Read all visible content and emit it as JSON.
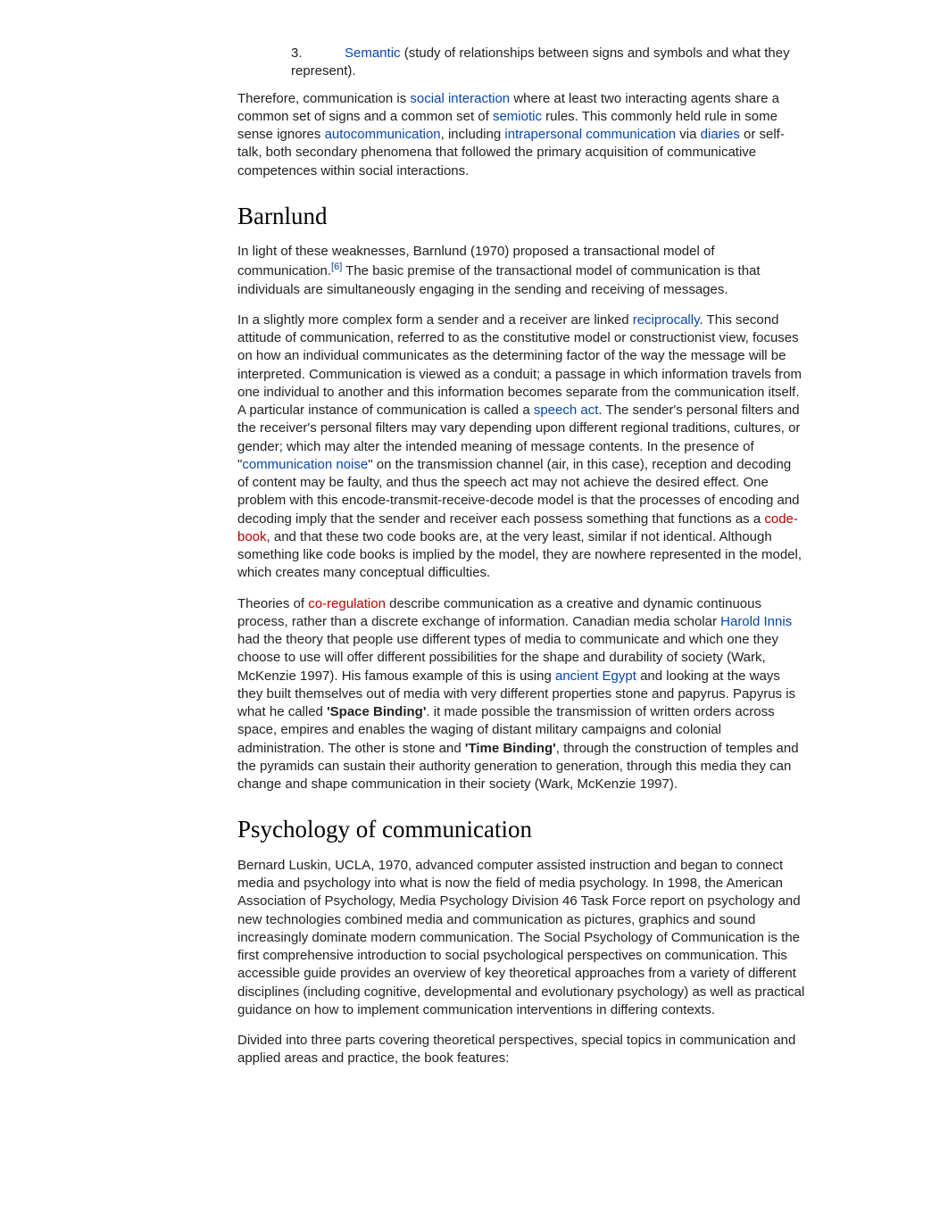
{
  "list": {
    "marker": "3.",
    "link": "Semantic",
    "rest": " (study of relationships between signs and symbols and what they represent)."
  },
  "therefore": {
    "t0": "Therefore, communication is ",
    "l1": "social interaction",
    "t1": " where at least two interacting agents share a common set of signs and a common set of ",
    "l2": "semiotic",
    "t2": " rules. This commonly held rule in some sense ignores ",
    "l3": "autocommunication",
    "t3": ", including ",
    "l4": "intrapersonal communication",
    "t4": " via ",
    "l5": "diaries",
    "t5": " or self-talk, both secondary phenomena that followed the primary acquisition of communicative competences within social interactions."
  },
  "barnlund": {
    "heading": "Barnlund",
    "p1a": "In light of these weaknesses, Barnlund (1970) proposed a transactional model of communication.",
    "cite": "[6]",
    "p1b": " The basic premise of the transactional model of communication is that individuals are simultaneously engaging in the sending and receiving of messages.",
    "p2": {
      "t0": "In a slightly more complex form a sender and a receiver are linked ",
      "l1": "reciprocally",
      "t1": ". This second attitude of communication, referred to as the constitutive model or constructionist view, focuses on how an individual communicates as the determining factor of the way the message will be interpreted. Communication is viewed as a conduit; a passage in which information travels from one individual to another and this information becomes separate from the communication itself. A particular instance of communication is called a ",
      "l2": "speech act",
      "t2": ". The sender's personal filters and the receiver's personal filters may vary depending upon different regional traditions, cultures, or gender; which may alter the intended meaning of message contents. In the presence of \"",
      "l3": "communication noise",
      "t3": "\" on the transmission channel (air, in this case), reception and decoding of content may be faulty, and thus the speech act may not achieve the desired effect. One problem with this encode-transmit-receive-decode model is that the processes of encoding and decoding imply that the sender and receiver each possess something that functions as a ",
      "l4": "code-book",
      "t4": ", and that these two code books are, at the very least, similar if not identical. Although something like code books is implied by the model, they are nowhere represented in the model, which creates many conceptual difficulties."
    },
    "p3": {
      "t0": "Theories of ",
      "l1": "co-regulation",
      "t1": " describe communication as a creative and dynamic continuous process, rather than a discrete exchange of information. Canadian media scholar ",
      "l2": "Harold Innis",
      "t2": " had the theory that people use different types of media to communicate and which one they choose to use will offer different possibilities for the shape and durability of society (Wark, McKenzie 1997). His famous example of this is using ",
      "l3": "ancient Egypt",
      "t3": " and looking at the ways they built themselves out of media with very different properties stone and papyrus. Papyrus is what he called ",
      "b1": "'Space Binding'",
      "t4": ". it made possible the transmission of written orders across space, empires and enables the waging of distant military campaigns and colonial administration. The other is stone and ",
      "b2": "'Time Binding'",
      "t5": ", through the construction of temples and the pyramids can sustain their authority generation to generation, through this media they can change and shape communication in their society (Wark, McKenzie 1997)."
    }
  },
  "psych": {
    "heading": "Psychology of communication",
    "p1": "Bernard Luskin, UCLA, 1970, advanced computer assisted instruction and began to connect media and psychology into what is now the field of media psychology. In 1998, the American Association of Psychology, Media Psychology Division 46 Task Force report on psychology and new technologies combined media and communication as pictures, graphics and sound increasingly dominate modern communication. The Social Psychology of Communication is the first comprehensive introduction to social psychological perspectives on communication. This accessible guide provides an overview of key theoretical approaches from a variety of different disciplines (including cognitive, developmental and evolutionary psychology) as well as practical guidance on how to implement communication interventions in differing contexts.",
    "p2": "Divided into three parts covering theoretical perspectives, special topics in communication and applied areas and practice, the book features:"
  }
}
